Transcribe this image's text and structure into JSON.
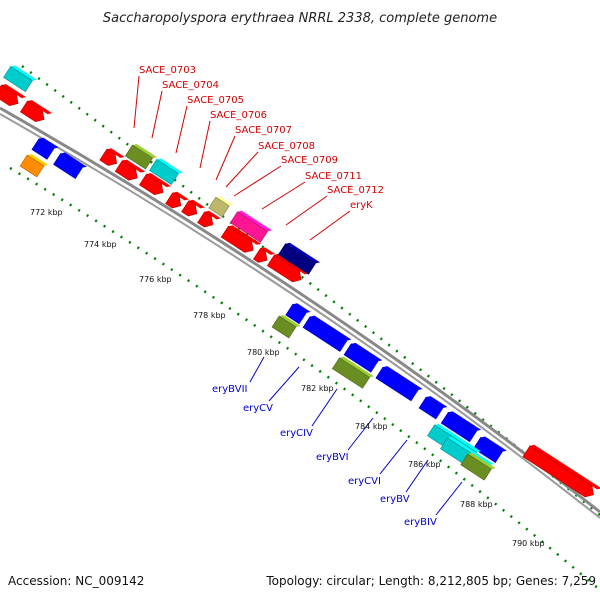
{
  "title": "Saccharopolyspora erythraea NRRL 2338, complete genome",
  "footer": {
    "accession": "Accession: NC_009142",
    "summary": "Topology: circular; Length: 8,212,805 bp; Genes: 7,259"
  },
  "ticks": [
    "772 kbp",
    "774 kbp",
    "776 kbp",
    "778 kbp",
    "780 kbp",
    "782 kbp",
    "784 kbp",
    "786 kbp",
    "788 kbp",
    "790 kbp"
  ],
  "forward_labels": [
    "SACE_0703",
    "SACE_0704",
    "SACE_0705",
    "SACE_0706",
    "SACE_0707",
    "SACE_0708",
    "SACE_0709",
    "SACE_0711",
    "SACE_0712",
    "eryK"
  ],
  "reverse_labels": [
    "eryBVII",
    "eryCV",
    "eryCIV",
    "eryBVI",
    "eryCVI",
    "eryBV",
    "eryBIV"
  ],
  "colors": {
    "forward_label": "#d40000",
    "reverse_label": "#0000cc",
    "red": "#ff0000",
    "blue": "#0000ff",
    "cyan": "#00cccc",
    "olive": "#6b8e23",
    "khaki": "#bdb76b",
    "magenta": "#ff1493",
    "navy": "#000080",
    "orange": "#ff8c00",
    "dots": "#008000",
    "backbone": "#888888"
  }
}
